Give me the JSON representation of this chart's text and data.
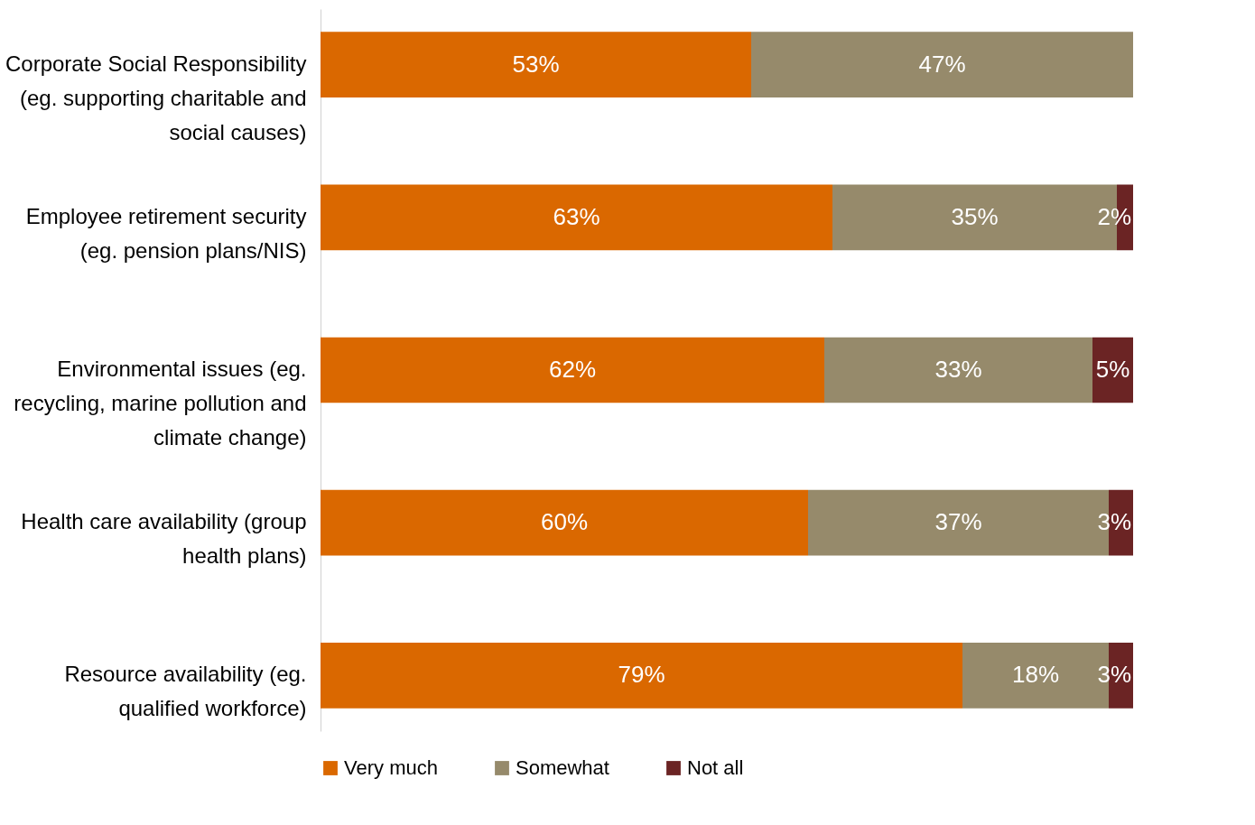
{
  "chart_data": {
    "type": "bar",
    "orientation": "horizontal",
    "stacked": true,
    "legend": "bottom",
    "categories": [
      "Corporate Social Responsibility (eg. supporting charitable and social causes)",
      "Employee retirement security (eg. pension plans/NIS)",
      "Environmental issues (eg. recycling, marine pollution and climate change)",
      "Health care availability (group health plans)",
      "Resource availability (eg. qualified workforce)"
    ],
    "series": [
      {
        "name": "Very much",
        "color": "#da6800",
        "values": [
          53,
          63,
          62,
          60,
          79
        ],
        "value_labels": [
          "53%",
          "63%",
          "62%",
          "60%",
          "79%"
        ]
      },
      {
        "name": "Somewhat",
        "color": "#968a6b",
        "values": [
          47,
          35,
          33,
          37,
          18
        ],
        "value_labels": [
          "47%",
          "35%",
          "33%",
          "37%",
          "18%"
        ]
      },
      {
        "name": "Not all",
        "color": "#6b2424",
        "values": [
          null,
          2,
          5,
          3,
          3
        ],
        "value_labels": [
          null,
          "2%",
          "5%",
          "3%",
          "3%"
        ]
      }
    ]
  }
}
